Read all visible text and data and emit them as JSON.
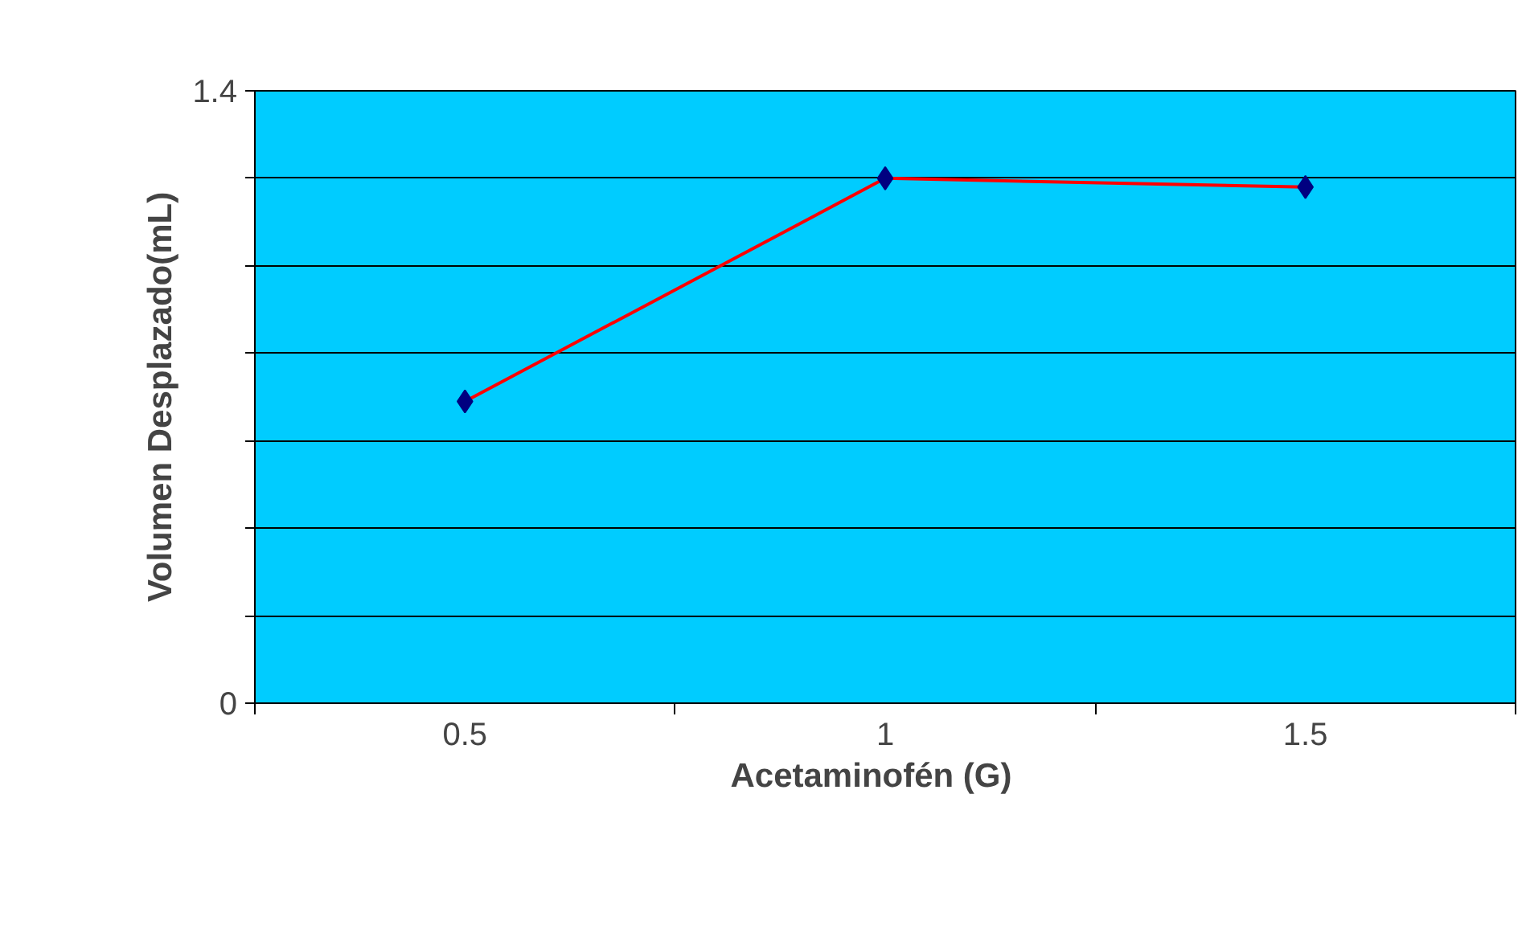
{
  "chart_data": {
    "type": "line",
    "xlabel": "Acetaminofén    (G)",
    "ylabel": "Volumen Desplazado(mL)",
    "categories": [
      "0.5",
      "1",
      "1.5"
    ],
    "series": [
      {
        "color": "#ff0000",
        "values": [
          0.69,
          1.2,
          1.18
        ]
      }
    ],
    "marker": "diamond",
    "ylim": [
      0,
      1.4
    ],
    "yticks": [
      0,
      {
        "value": 0.2,
        "label": null
      },
      {
        "value": 0.4,
        "label": null
      },
      {
        "value": 0.6,
        "label": null
      },
      {
        "value": 0.8,
        "label": null
      },
      {
        "value": 1.0,
        "label": null
      },
      {
        "value": 1.2,
        "label": null
      },
      1.4
    ],
    "grid": "y"
  }
}
